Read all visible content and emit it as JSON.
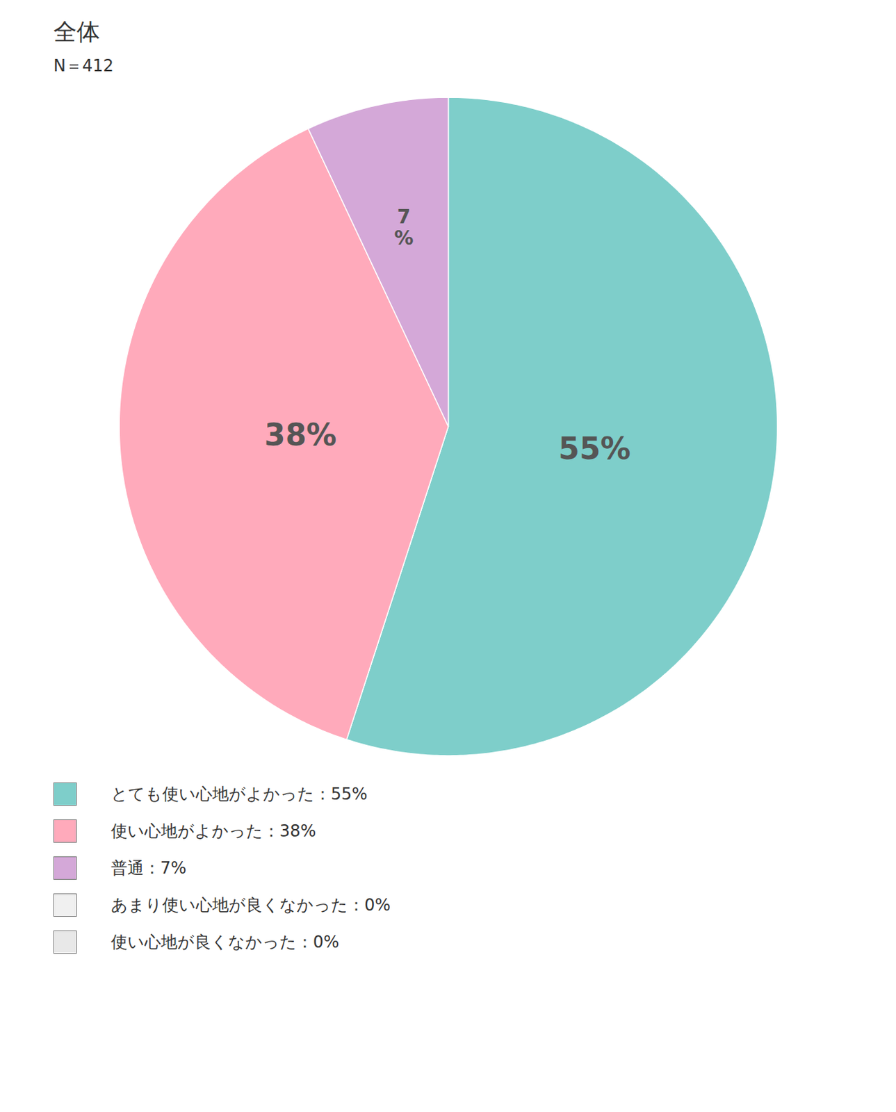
{
  "chart_data": {
    "type": "pie",
    "title": "全体",
    "subtitle": "N＝412",
    "categories": [
      "とても使い心地がよかった：55%",
      "使い心地がよかった：38%",
      "普通：7%",
      "あまり使い心地が良くなかった：0%",
      "使い心地が良くなかった：0%"
    ],
    "values": [
      55,
      38,
      7,
      0,
      0
    ],
    "value_labels": [
      "55%",
      "38%",
      "7\n%",
      null,
      null
    ],
    "colors": [
      "#7ececa",
      "#ffaabb",
      "#d4a8d8",
      "#f0f0f0",
      "#e8e8e8"
    ],
    "data_labels": true,
    "legend": "bottom"
  }
}
